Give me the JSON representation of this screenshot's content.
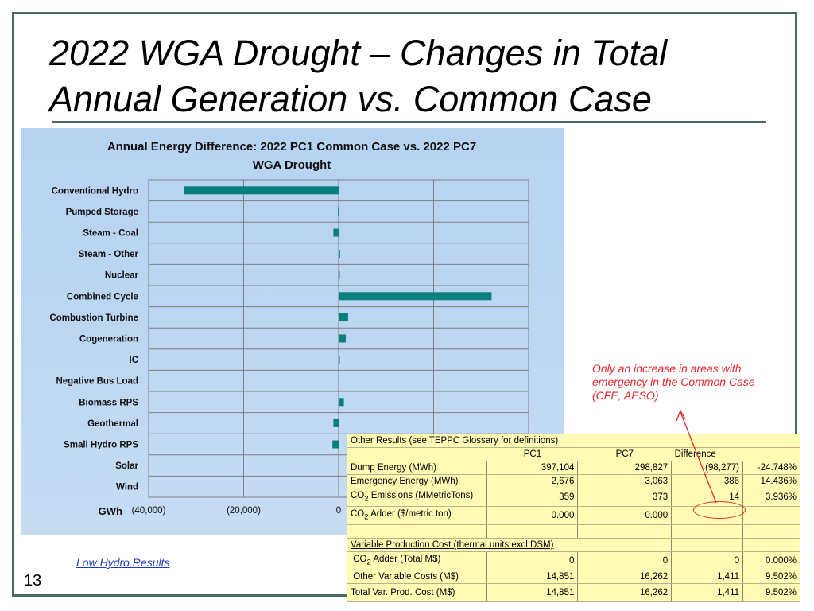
{
  "slide": {
    "title_line1": "2022 WGA Drought – Changes in Total",
    "title_line2": "Annual Generation vs. Common Case",
    "page_number": "13",
    "link_text": "Low Hydro Results",
    "note": "Only an increase in areas with emergency in the Common Case (CFE, AESO)"
  },
  "chart_data": {
    "type": "bar",
    "orientation": "horizontal",
    "title_line1": "Annual Energy Difference: 2022 PC1 Common Case vs. 2022 PC7",
    "title_line2": "WGA Drought",
    "xlabel": "GWh",
    "xlim": [
      -40000,
      40000
    ],
    "xticks": [
      -40000,
      -20000,
      0
    ],
    "xtick_labels": [
      "(40,000)",
      "(20,000)",
      "0"
    ],
    "grid": true,
    "bar_color": "#0a7f7f",
    "categories": [
      "Conventional Hydro",
      "Pumped Storage",
      "Steam - Coal",
      "Steam - Other",
      "Nuclear",
      "Combined Cycle",
      "Combustion Turbine",
      "Cogeneration",
      "IC",
      "Negative Bus Load",
      "Biomass RPS",
      "Geothermal",
      "Small Hydro RPS",
      "Solar",
      "Wind"
    ],
    "values": [
      -32500,
      -150,
      -1100,
      300,
      150,
      32200,
      2000,
      1500,
      100,
      0,
      1100,
      -1100,
      -1300,
      0,
      0
    ]
  },
  "table": {
    "header": "Other Results (see TEPPC Glossary for definitions)",
    "col_pc1": "PC1",
    "col_pc7": "PC7",
    "col_diff": "Difference",
    "rows1": [
      {
        "label": "Dump Energy (MWh)",
        "pc1": "397,104",
        "pc7": "298,827",
        "diff": "(98,277)",
        "pct": "-24.748%"
      },
      {
        "label": "Emergency Energy (MWh)",
        "pc1": "2,676",
        "pc7": "3,063",
        "diff": "386",
        "pct": "14.436%"
      }
    ],
    "co2_emissions": {
      "co": "CO",
      "sub": "2",
      "rest": " Emissions (MMetricTons)",
      "pc1": "359",
      "pc7": "373",
      "diff": "14",
      "pct": "3.936%"
    },
    "co2_adder": {
      "co": "CO",
      "sub": "2",
      "rest": " Adder ($/metric ton)",
      "pc1": "0.000",
      "pc7": "0.000"
    },
    "vpc_header": "Variable Production Cost (thermal units excl DSM)",
    "co2_adder_total": {
      "co": "CO",
      "sub": "2",
      "rest": " Adder (Total M$)",
      "pc1": "0",
      "pc7": "0",
      "diff": "0",
      "pct": "0.000%"
    },
    "other_var": {
      "label": "Other Variable Costs (M$)",
      "pc1": "14,851",
      "pc7": "16,262",
      "diff": "1,411",
      "pct": "9.502%"
    },
    "total": {
      "label": "Total Var. Prod. Cost (M$)",
      "pc1": "14,851",
      "pc7": "16,262",
      "diff": "1,411",
      "pct": "9.502%"
    }
  }
}
